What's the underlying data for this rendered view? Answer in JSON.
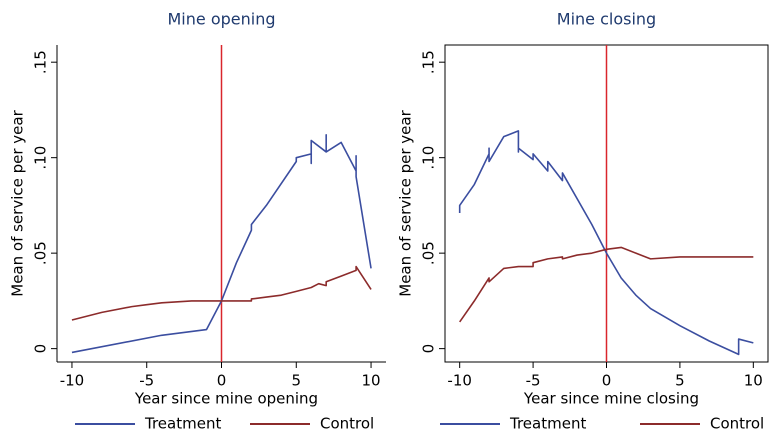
{
  "chart_data": [
    {
      "type": "line",
      "title": "Mine opening",
      "xlabel": "Year since mine opening",
      "ylabel": "Mean of service per year",
      "xlim": [
        -11,
        11
      ],
      "ylim": [
        -0.007,
        0.159
      ],
      "xticks": [
        -10,
        -5,
        0,
        5,
        10
      ],
      "yticks": [
        0,
        {
          "value": 0.05,
          "label": ".05"
        },
        {
          "value": 0.1,
          "label": ".10"
        },
        {
          "value": 0.15,
          "label": ".15"
        }
      ],
      "vline": 0,
      "vline_color": "#d9262c",
      "frame": false,
      "series": [
        {
          "name": "Treatment",
          "color": "#3b4ea0",
          "x": [
            -10,
            -4,
            -1,
            0,
            1,
            2,
            2,
            3,
            5,
            5,
            6,
            6,
            6,
            7,
            7,
            7,
            8,
            9,
            9,
            9,
            10
          ],
          "values": [
            -0.002,
            0.007,
            0.01,
            0.025,
            0.045,
            0.062,
            0.065,
            0.075,
            0.098,
            0.1,
            0.102,
            0.097,
            0.109,
            0.103,
            0.112,
            0.103,
            0.108,
            0.093,
            0.101,
            0.09,
            0.042
          ]
        },
        {
          "name": "Control",
          "color": "#8c2b2b",
          "x": [
            -10,
            -8,
            -6,
            -5,
            -4,
            -2,
            0,
            2,
            2,
            3,
            4,
            5,
            6,
            6.5,
            7,
            7,
            8,
            9,
            9,
            10
          ],
          "values": [
            0.015,
            0.019,
            0.022,
            0.023,
            0.024,
            0.025,
            0.025,
            0.025,
            0.026,
            0.027,
            0.028,
            0.03,
            0.032,
            0.034,
            0.033,
            0.035,
            0.038,
            0.041,
            0.043,
            0.031
          ]
        }
      ]
    },
    {
      "type": "line",
      "title": "Mine closing",
      "xlabel": "Year since mine closing",
      "ylabel": "Mean of service per year",
      "xlim": [
        -11,
        11
      ],
      "ylim": [
        -0.007,
        0.159
      ],
      "xticks": [
        -10,
        -5,
        0,
        5,
        10
      ],
      "yticks": [
        0,
        {
          "value": 0.05,
          "label": ".05"
        },
        {
          "value": 0.1,
          "label": ".10"
        },
        {
          "value": 0.15,
          "label": ".15"
        }
      ],
      "vline": 0,
      "vline_color": "#d9262c",
      "frame": true,
      "series": [
        {
          "name": "Treatment",
          "color": "#3b4ea0",
          "x": [
            -10,
            -10,
            -9,
            -8,
            -8,
            -8,
            -7,
            -6,
            -6,
            -6,
            -5,
            -5,
            -4,
            -4,
            -3,
            -3,
            -1,
            0,
            1,
            2,
            3,
            5,
            7,
            9,
            9,
            10
          ],
          "values": [
            0.071,
            0.075,
            0.086,
            0.102,
            0.105,
            0.098,
            0.111,
            0.114,
            0.103,
            0.105,
            0.099,
            0.102,
            0.093,
            0.098,
            0.088,
            0.092,
            0.065,
            0.05,
            0.037,
            0.028,
            0.021,
            0.012,
            0.004,
            -0.003,
            0.005,
            0.003
          ]
        },
        {
          "name": "Control",
          "color": "#8c2b2b",
          "x": [
            -10,
            -9,
            -8,
            -8,
            -7,
            -6,
            -5,
            -5,
            -4,
            -3,
            -3,
            -2,
            -1,
            0,
            1,
            2,
            3,
            5,
            7,
            10
          ],
          "values": [
            0.014,
            0.025,
            0.037,
            0.035,
            0.042,
            0.043,
            0.043,
            0.045,
            0.047,
            0.048,
            0.047,
            0.049,
            0.05,
            0.052,
            0.053,
            0.05,
            0.047,
            0.048,
            0.048,
            0.048
          ]
        }
      ]
    }
  ]
}
